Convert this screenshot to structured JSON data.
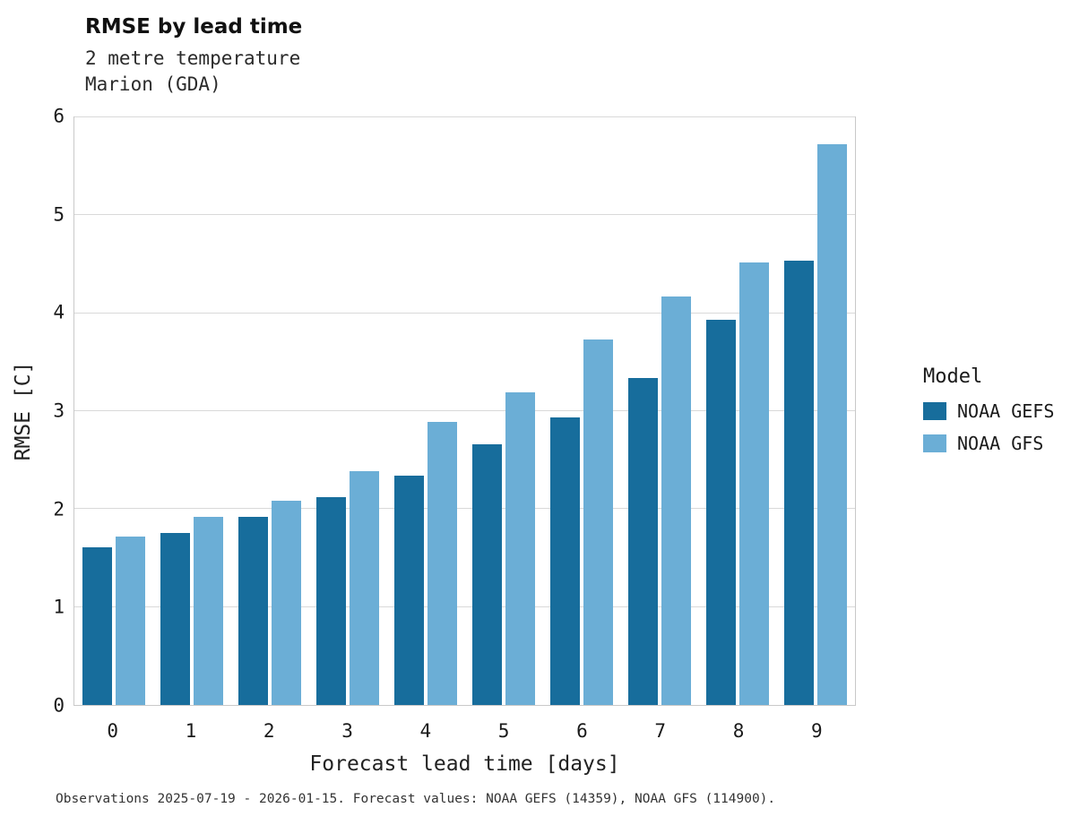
{
  "header": {
    "title": "RMSE by lead time",
    "subtitle_line1": "2 metre temperature",
    "subtitle_line2": "Marion (GDA)"
  },
  "chart_data": {
    "type": "bar",
    "title": "RMSE by lead time",
    "subtitle": "2 metre temperature",
    "location": "Marion (GDA)",
    "xlabel": "Forecast lead time [days]",
    "ylabel": "RMSE [C]",
    "categories": [
      "0",
      "1",
      "2",
      "3",
      "4",
      "5",
      "6",
      "7",
      "8",
      "9"
    ],
    "series": [
      {
        "name": "NOAA GEFS",
        "color": "#176d9c",
        "values": [
          1.61,
          1.76,
          1.92,
          2.12,
          2.34,
          2.66,
          2.94,
          3.34,
          3.93,
          4.54
        ]
      },
      {
        "name": "NOAA GFS",
        "color": "#6baed6",
        "values": [
          1.72,
          1.92,
          2.09,
          2.39,
          2.89,
          3.19,
          3.73,
          4.17,
          4.52,
          5.73
        ]
      }
    ],
    "ylim": [
      0,
      6
    ],
    "yticks": [
      0,
      1,
      2,
      3,
      4,
      5,
      6
    ],
    "grid": true,
    "legend_title": "Model",
    "legend_position": "right"
  },
  "footer": {
    "caption": "Observations 2025-07-19 - 2026-01-15. Forecast values: NOAA GEFS (14359), NOAA GFS (114900)."
  }
}
